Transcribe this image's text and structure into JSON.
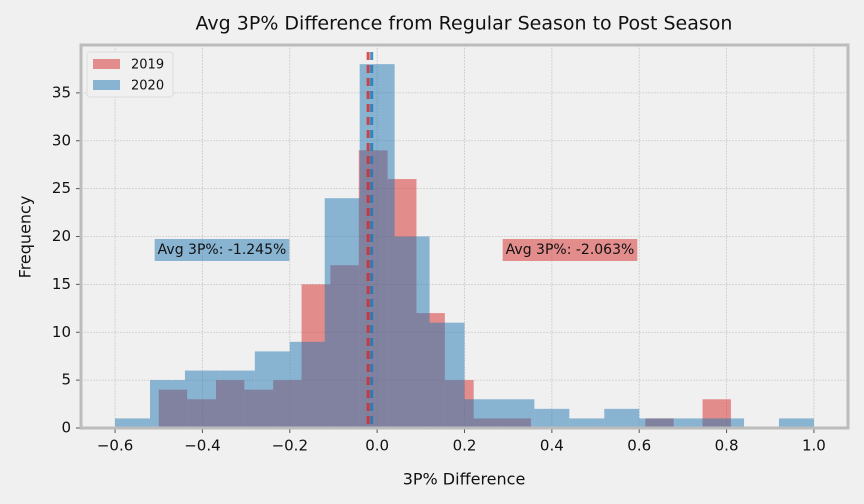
{
  "chart_data": {
    "type": "histogram",
    "title": "Avg 3P% Difference from Regular Season to Post Season",
    "x_label": "3P% Difference",
    "y_label": "Frequency",
    "xlim": [
      -0.678,
      1.078
    ],
    "ylim": [
      0,
      40
    ],
    "xticks": [
      {
        "value": -0.6,
        "label": "−0.6"
      },
      {
        "value": -0.4,
        "label": "−0.4"
      },
      {
        "value": -0.2,
        "label": "−0.2"
      },
      {
        "value": 0,
        "label": "0.0"
      },
      {
        "value": 0.2,
        "label": "0.2"
      },
      {
        "value": 0.4,
        "label": "0.4"
      },
      {
        "value": 0.6,
        "label": "0.6"
      },
      {
        "value": 0.8,
        "label": "0.8"
      },
      {
        "value": 1,
        "label": "1.0"
      }
    ],
    "yticks": [
      0,
      5,
      10,
      15,
      20,
      25,
      30,
      35
    ],
    "grid": true,
    "legend": "upper left",
    "series": [
      {
        "name": "2019",
        "color": "#d62728",
        "bins": [
          -0.5,
          -0.435,
          -0.369,
          -0.304,
          -0.238,
          -0.173,
          -0.107,
          -0.042,
          0.024,
          0.09,
          0.155,
          0.221,
          0.286,
          0.352,
          0.417,
          0.483,
          0.548,
          0.614,
          0.679,
          0.745,
          0.81
        ],
        "values": [
          4,
          3,
          5,
          4,
          5,
          15,
          17,
          29,
          26,
          12,
          5,
          1,
          1,
          0,
          0,
          0,
          0,
          1,
          0,
          3
        ],
        "mean": -0.02063,
        "annotation": "Avg 3P%: -2.063%"
      },
      {
        "name": "2020",
        "color": "#1f77b4",
        "bins": [
          -0.6,
          -0.52,
          -0.44,
          -0.36,
          -0.28,
          -0.2,
          -0.12,
          -0.04,
          0.04,
          0.12,
          0.2,
          0.28,
          0.36,
          0.44,
          0.52,
          0.6,
          0.68,
          0.76,
          0.84,
          0.92,
          1.0
        ],
        "values": [
          1,
          5,
          6,
          6,
          8,
          9,
          24,
          38,
          20,
          11,
          3,
          3,
          2,
          1,
          2,
          1,
          1,
          1,
          0,
          1
        ],
        "mean": -0.01245,
        "annotation": "Avg 3P%: -1.245%"
      }
    ]
  }
}
